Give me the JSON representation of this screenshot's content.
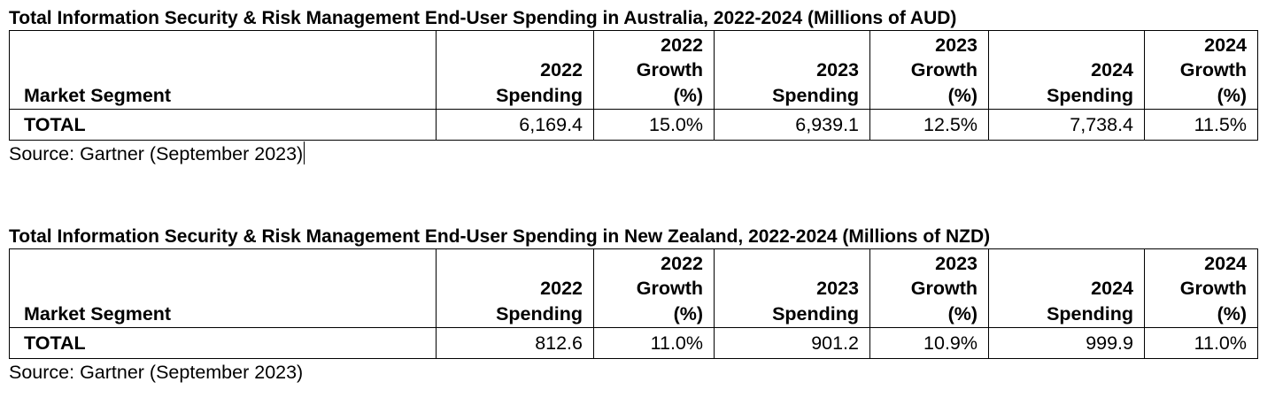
{
  "tables": [
    {
      "title": "Total Information Security & Risk Management End-User Spending in Australia, 2022-2024 (Millions of AUD)",
      "headers": {
        "segment": "Market Segment",
        "spend_2022": [
          "2022",
          "Spending"
        ],
        "growth_2022": [
          "2022",
          "Growth",
          "(%)"
        ],
        "spend_2023": [
          "2023",
          "Spending"
        ],
        "growth_2023": [
          "2023",
          "Growth",
          "(%)"
        ],
        "spend_2024": [
          "2024",
          "Spending"
        ],
        "growth_2024": [
          "2024",
          "Growth",
          "(%)"
        ]
      },
      "row": {
        "segment": "TOTAL",
        "spend_2022": "6,169.4",
        "growth_2022": "15.0%",
        "spend_2023": "6,939.1",
        "growth_2023": "12.5%",
        "spend_2024": "7,738.4",
        "growth_2024": "11.5%"
      },
      "source": "Source: Gartner (September 2023)"
    },
    {
      "title": "Total Information Security & Risk Management End-User Spending in New Zealand, 2022-2024 (Millions of NZD)",
      "headers": {
        "segment": "Market Segment",
        "spend_2022": [
          "2022",
          "Spending"
        ],
        "growth_2022": [
          "2022",
          "Growth",
          "(%)"
        ],
        "spend_2023": [
          "2023",
          "Spending"
        ],
        "growth_2023": [
          "2023",
          "Growth",
          "(%)"
        ],
        "spend_2024": [
          "2024",
          "Spending"
        ],
        "growth_2024": [
          "2024",
          "Growth",
          "(%)"
        ]
      },
      "row": {
        "segment": "TOTAL",
        "spend_2022": "812.6",
        "growth_2022": "11.0%",
        "spend_2023": "901.2",
        "growth_2023": "10.9%",
        "spend_2024": "999.9",
        "growth_2024": "11.0%"
      },
      "source": "Source: Gartner (September 2023)"
    }
  ]
}
